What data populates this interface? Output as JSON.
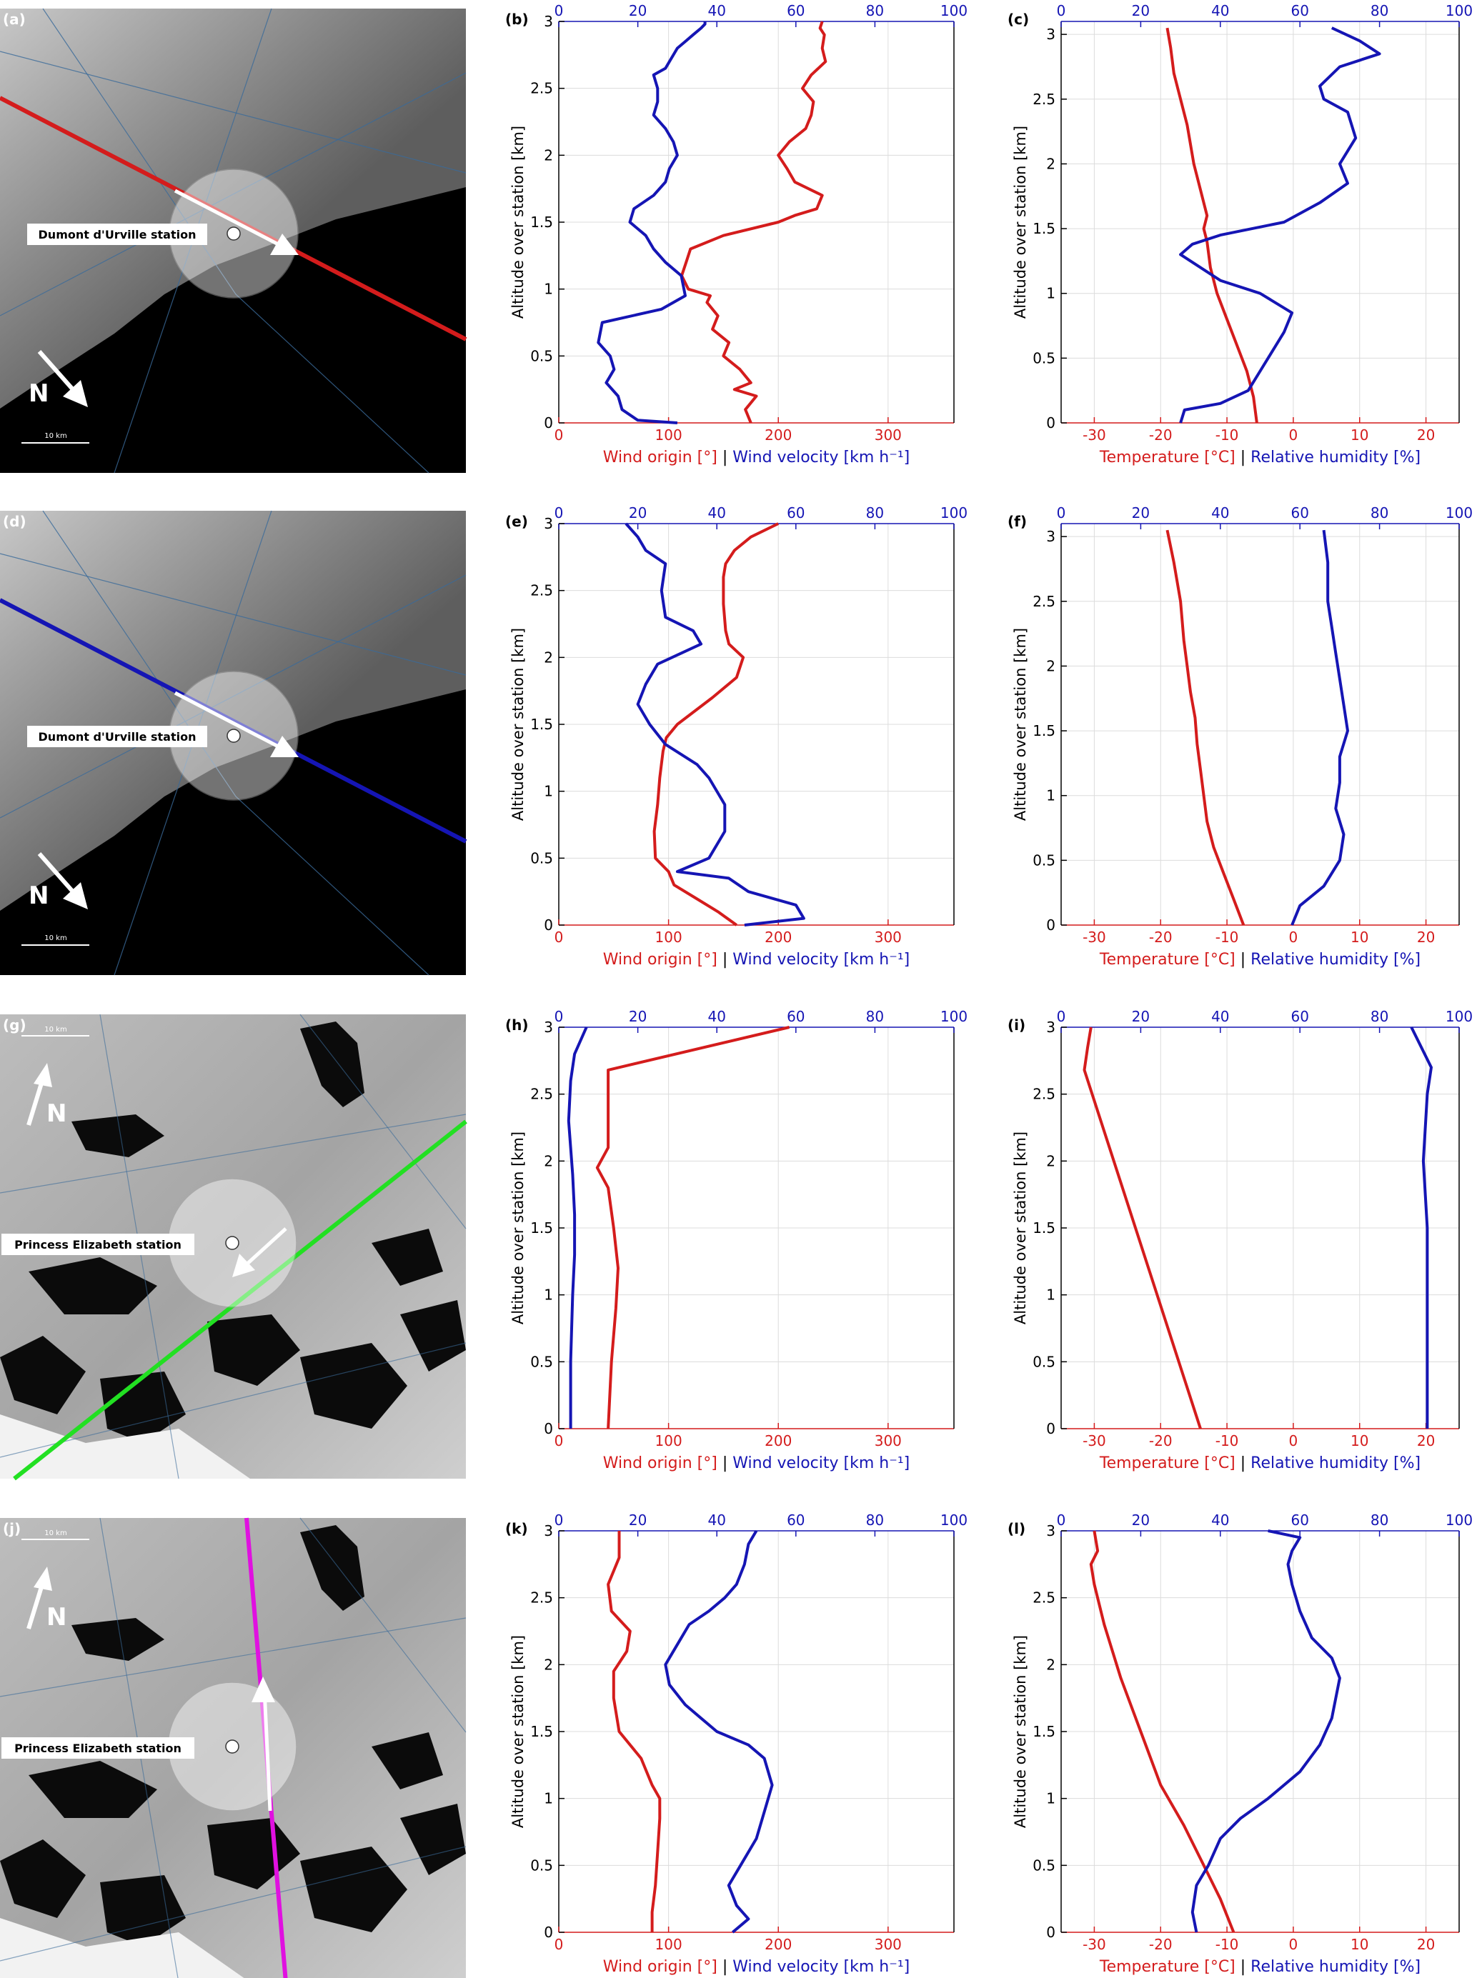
{
  "labels": {
    "wind_origin": "Wind origin [°]",
    "sep1": "|",
    "wind_velocity": "Wind velocity",
    "wind_velocity_unit": "[km h⁻¹]",
    "temperature": "Temperature [°C]",
    "sep2": "|",
    "humidity": "Relative humidity [%]",
    "altitude": "Altitude over station [km]",
    "north": "N",
    "scale": "10 km"
  },
  "colors": {
    "red": "#d41c1c",
    "blue": "#1515b4",
    "green": "#22e022",
    "magenta": "#e010e0",
    "grid": "#dcdcdc"
  },
  "rows": [
    {
      "map_label": "(a)",
      "station": "Dumont d'Urville station",
      "map_type": "dark",
      "line_color": "red",
      "wind_label": "(b)",
      "thermo_label": "(c)"
    },
    {
      "map_label": "(d)",
      "station": "Dumont d'Urville station",
      "map_type": "dark",
      "line_color": "blue",
      "wind_label": "(e)",
      "thermo_label": "(f)"
    },
    {
      "map_label": "(g)",
      "station": "Princess Elizabeth station",
      "map_type": "light",
      "line_color": "green",
      "wind_label": "(h)",
      "thermo_label": "(i)"
    },
    {
      "map_label": "(j)",
      "station": "Princess Elizabeth station",
      "map_type": "light",
      "line_color": "magenta",
      "wind_label": "(k)",
      "thermo_label": "(l)"
    }
  ],
  "chart_data": [
    {
      "id": "b",
      "type": "line",
      "xlabel": "Wind origin [°] | Wind velocity [km h⁻¹]",
      "ylabel": "Altitude over station [km]",
      "xlim_bottom": [
        0,
        360
      ],
      "xticks_bottom": [
        0,
        100,
        200,
        300
      ],
      "xlim_top": [
        0,
        100
      ],
      "xticks_top": [
        0,
        20,
        40,
        60,
        80,
        100
      ],
      "ylim": [
        0,
        3
      ],
      "yticks": [
        0,
        0.5,
        1,
        1.5,
        2,
        2.5,
        3
      ],
      "series": [
        {
          "color": "red",
          "axis": "bottom",
          "x": [
            175,
            170,
            180,
            160,
            175,
            165,
            150,
            155,
            140,
            145,
            135,
            138,
            118,
            112,
            116,
            120,
            150,
            200,
            215,
            235,
            240,
            215,
            208,
            200,
            210,
            225,
            230,
            232,
            222,
            230,
            243,
            240,
            242,
            238,
            240
          ],
          "y": [
            0,
            0.1,
            0.2,
            0.25,
            0.3,
            0.4,
            0.5,
            0.6,
            0.7,
            0.8,
            0.9,
            0.95,
            1.0,
            1.1,
            1.2,
            1.3,
            1.4,
            1.5,
            1.55,
            1.6,
            1.7,
            1.8,
            1.9,
            2.0,
            2.1,
            2.2,
            2.3,
            2.4,
            2.5,
            2.6,
            2.7,
            2.8,
            2.9,
            2.95,
            3.0
          ]
        },
        {
          "color": "blue",
          "axis": "top",
          "x": [
            30,
            20,
            16,
            15,
            12,
            14,
            13,
            10,
            11,
            26,
            32,
            31,
            27,
            24,
            22,
            18,
            19,
            24,
            27,
            28,
            30,
            29,
            27,
            24,
            25,
            25,
            24,
            27,
            28,
            30,
            32,
            34,
            36,
            37,
            37
          ],
          "y": [
            0,
            0.02,
            0.1,
            0.2,
            0.3,
            0.4,
            0.5,
            0.6,
            0.75,
            0.85,
            0.95,
            1.1,
            1.2,
            1.3,
            1.4,
            1.5,
            1.6,
            1.7,
            1.8,
            1.9,
            2.0,
            2.1,
            2.2,
            2.3,
            2.4,
            2.5,
            2.6,
            2.65,
            2.7,
            2.8,
            2.85,
            2.9,
            2.95,
            2.98,
            3.0
          ]
        }
      ]
    },
    {
      "id": "c",
      "type": "line",
      "xlabel": "Temperature [°C] | Relative humidity [%]",
      "ylabel": "Altitude over station [km]",
      "xlim_bottom": [
        -35,
        25
      ],
      "xticks_bottom": [
        -30,
        -20,
        -10,
        0,
        10,
        20
      ],
      "xlim_top": [
        0,
        100
      ],
      "xticks_top": [
        0,
        20,
        40,
        60,
        80,
        100
      ],
      "ylim": [
        0,
        3.1
      ],
      "yticks": [
        0,
        0.5,
        1,
        1.5,
        2,
        2.5,
        3
      ],
      "series": [
        {
          "color": "red",
          "axis": "bottom",
          "x": [
            -5.5,
            -6,
            -7,
            -8.5,
            -10,
            -11.5,
            -12.5,
            -13,
            -13.5,
            -13,
            -14,
            -15,
            -16,
            -17,
            -18,
            -18.5,
            -19
          ],
          "y": [
            0,
            0.2,
            0.4,
            0.6,
            0.8,
            1.0,
            1.2,
            1.4,
            1.5,
            1.6,
            1.8,
            2.0,
            2.3,
            2.5,
            2.7,
            2.9,
            3.05
          ]
        },
        {
          "color": "blue",
          "axis": "top",
          "x": [
            30,
            31,
            40,
            47,
            50,
            53,
            56,
            58,
            50,
            40,
            30,
            33,
            40,
            56,
            65,
            72,
            70,
            74,
            72,
            66,
            65,
            70,
            80,
            75,
            68
          ],
          "y": [
            0,
            0.1,
            0.15,
            0.25,
            0.4,
            0.55,
            0.7,
            0.85,
            1.0,
            1.1,
            1.3,
            1.38,
            1.45,
            1.55,
            1.7,
            1.85,
            2.0,
            2.2,
            2.4,
            2.5,
            2.6,
            2.75,
            2.85,
            2.95,
            3.05
          ]
        }
      ]
    },
    {
      "id": "e",
      "type": "line",
      "xlabel": "Wind origin [°] | Wind velocity [km h⁻¹]",
      "ylabel": "Altitude over station [km]",
      "xlim_bottom": [
        0,
        360
      ],
      "xticks_bottom": [
        0,
        100,
        200,
        300
      ],
      "xlim_top": [
        0,
        100
      ],
      "xticks_top": [
        0,
        20,
        40,
        60,
        80,
        100
      ],
      "ylim": [
        0,
        3
      ],
      "yticks": [
        0,
        0.5,
        1,
        1.5,
        2,
        2.5,
        3
      ],
      "series": [
        {
          "color": "red",
          "axis": "bottom",
          "x": [
            162,
            145,
            125,
            105,
            100,
            88,
            87,
            90,
            92,
            95,
            98,
            108,
            140,
            162,
            168,
            155,
            152,
            150,
            150,
            152,
            160,
            175,
            200
          ],
          "y": [
            0,
            0.1,
            0.2,
            0.3,
            0.4,
            0.5,
            0.7,
            0.9,
            1.1,
            1.3,
            1.4,
            1.5,
            1.7,
            1.85,
            2.0,
            2.1,
            2.2,
            2.4,
            2.6,
            2.7,
            2.8,
            2.9,
            3.0
          ]
        },
        {
          "color": "blue",
          "axis": "top",
          "x": [
            47,
            62,
            60,
            48,
            43,
            30,
            38,
            42,
            42,
            38,
            35,
            27,
            23,
            20,
            22,
            25,
            36,
            34,
            27,
            26,
            27,
            22,
            20,
            17
          ],
          "y": [
            0,
            0.05,
            0.15,
            0.25,
            0.35,
            0.4,
            0.5,
            0.7,
            0.9,
            1.1,
            1.2,
            1.35,
            1.5,
            1.65,
            1.8,
            1.95,
            2.1,
            2.2,
            2.3,
            2.5,
            2.7,
            2.8,
            2.9,
            3.0
          ]
        }
      ]
    },
    {
      "id": "f",
      "type": "line",
      "xlabel": "Temperature [°C] | Relative humidity [%]",
      "ylabel": "Altitude over station [km]",
      "xlim_bottom": [
        -35,
        25
      ],
      "xticks_bottom": [
        -30,
        -20,
        -10,
        0,
        10,
        20
      ],
      "xlim_top": [
        0,
        100
      ],
      "xticks_top": [
        0,
        20,
        40,
        60,
        80,
        100
      ],
      "ylim": [
        0,
        3.1
      ],
      "yticks": [
        0,
        0.5,
        1,
        1.5,
        2,
        2.5,
        3
      ],
      "series": [
        {
          "color": "red",
          "axis": "bottom",
          "x": [
            -7.5,
            -9,
            -10.5,
            -12,
            -13,
            -13.5,
            -14,
            -14.5,
            -14.8,
            -15.5,
            -16,
            -16.5,
            -17,
            -18,
            -19
          ],
          "y": [
            0,
            0.2,
            0.4,
            0.6,
            0.8,
            1.0,
            1.2,
            1.4,
            1.6,
            1.8,
            2.0,
            2.2,
            2.5,
            2.8,
            3.05
          ]
        },
        {
          "color": "blue",
          "axis": "top",
          "x": [
            58,
            60,
            66,
            70,
            71,
            69,
            70,
            70,
            72,
            71,
            70,
            69,
            68,
            67,
            67,
            66
          ],
          "y": [
            0,
            0.15,
            0.3,
            0.5,
            0.7,
            0.9,
            1.1,
            1.3,
            1.5,
            1.7,
            1.9,
            2.1,
            2.3,
            2.5,
            2.8,
            3.05
          ]
        }
      ]
    },
    {
      "id": "h",
      "type": "line",
      "xlabel": "Wind origin [°] | Wind velocity [km h⁻¹]",
      "ylabel": "Altitude over station [km]",
      "xlim_bottom": [
        0,
        360
      ],
      "xticks_bottom": [
        0,
        100,
        200,
        300
      ],
      "xlim_top": [
        0,
        100
      ],
      "xticks_top": [
        0,
        20,
        40,
        60,
        80,
        100
      ],
      "ylim": [
        0,
        3
      ],
      "yticks": [
        0,
        0.5,
        1,
        1.5,
        2,
        2.5,
        3
      ],
      "series": [
        {
          "color": "red",
          "axis": "bottom",
          "x": [
            45,
            48,
            52,
            54,
            50,
            45,
            35,
            45,
            45,
            210
          ],
          "y": [
            0,
            0.5,
            0.9,
            1.2,
            1.5,
            1.8,
            1.95,
            2.1,
            2.68,
            3.0
          ]
        },
        {
          "color": "blue",
          "axis": "top",
          "x": [
            3,
            3,
            3.5,
            4,
            4,
            3.5,
            3,
            2.5,
            3,
            4,
            7
          ],
          "y": [
            0,
            0.5,
            1.0,
            1.3,
            1.6,
            1.9,
            2.1,
            2.3,
            2.6,
            2.8,
            3.0
          ]
        }
      ]
    },
    {
      "id": "i",
      "type": "line",
      "xlabel": "Temperature [°C] | Relative humidity [%]",
      "ylabel": "Altitude over station [km]",
      "xlim_bottom": [
        -35,
        25
      ],
      "xticks_bottom": [
        -30,
        -20,
        -10,
        0,
        10,
        20
      ],
      "xlim_top": [
        0,
        100
      ],
      "xticks_top": [
        0,
        20,
        40,
        60,
        80,
        100
      ],
      "ylim": [
        0,
        3
      ],
      "yticks": [
        0,
        0.5,
        1,
        1.5,
        2,
        2.5,
        3
      ],
      "series": [
        {
          "color": "red",
          "axis": "bottom",
          "x": [
            -14,
            -31.5,
            -31,
            -30.5
          ],
          "y": [
            0,
            2.68,
            2.85,
            3.0
          ]
        },
        {
          "color": "blue",
          "axis": "top",
          "x": [
            92,
            92,
            92,
            92,
            91,
            92,
            93,
            88
          ],
          "y": [
            0,
            0.5,
            1.0,
            1.5,
            2.0,
            2.5,
            2.7,
            3.0
          ]
        }
      ]
    },
    {
      "id": "k",
      "type": "line",
      "xlabel": "Wind origin [°] | Wind velocity [km h⁻¹]",
      "ylabel": "Altitude over station [km]",
      "xlim_bottom": [
        0,
        360
      ],
      "xticks_bottom": [
        0,
        100,
        200,
        300
      ],
      "xlim_top": [
        0,
        100
      ],
      "xticks_top": [
        0,
        20,
        40,
        60,
        80,
        100
      ],
      "ylim": [
        0,
        3
      ],
      "yticks": [
        0,
        0.5,
        1,
        1.5,
        2,
        2.5,
        3
      ],
      "series": [
        {
          "color": "red",
          "axis": "bottom",
          "x": [
            85,
            85,
            88,
            90,
            92,
            92,
            85,
            80,
            75,
            55,
            50,
            50,
            62,
            65,
            48,
            45,
            55,
            55
          ],
          "y": [
            0,
            0.15,
            0.35,
            0.6,
            0.85,
            1.0,
            1.1,
            1.2,
            1.3,
            1.5,
            1.75,
            1.95,
            2.1,
            2.25,
            2.4,
            2.6,
            2.8,
            3.0
          ]
        },
        {
          "color": "blue",
          "axis": "top",
          "x": [
            44,
            48,
            45,
            43,
            46,
            50,
            52,
            54,
            52,
            48,
            40,
            36,
            32,
            28,
            27,
            30,
            33,
            38,
            42,
            45,
            47,
            48,
            50
          ],
          "y": [
            0,
            0.1,
            0.2,
            0.35,
            0.5,
            0.7,
            0.9,
            1.1,
            1.3,
            1.4,
            1.5,
            1.6,
            1.7,
            1.85,
            2.0,
            2.15,
            2.3,
            2.4,
            2.5,
            2.6,
            2.75,
            2.9,
            3.0
          ]
        }
      ]
    },
    {
      "id": "l",
      "type": "line",
      "xlabel": "Temperature [°C] | Relative humidity [%]",
      "ylabel": "Altitude over station [km]",
      "xlim_bottom": [
        -35,
        25
      ],
      "xticks_bottom": [
        -30,
        -20,
        -10,
        0,
        10,
        20
      ],
      "xlim_top": [
        0,
        100
      ],
      "xticks_top": [
        0,
        20,
        40,
        60,
        80,
        100
      ],
      "ylim": [
        0,
        3
      ],
      "yticks": [
        0,
        0.5,
        1,
        1.5,
        2,
        2.5,
        3
      ],
      "series": [
        {
          "color": "red",
          "axis": "bottom",
          "x": [
            -9,
            -11,
            -13.5,
            -16.5,
            -20,
            -23,
            -26,
            -28.5,
            -30,
            -30.5,
            -29.5,
            -30
          ],
          "y": [
            0,
            0.25,
            0.5,
            0.8,
            1.1,
            1.5,
            1.9,
            2.3,
            2.6,
            2.75,
            2.85,
            3.0
          ]
        },
        {
          "color": "blue",
          "axis": "top",
          "x": [
            34,
            33,
            34,
            37,
            40,
            45,
            52,
            60,
            65,
            68,
            70,
            68,
            63,
            60,
            58,
            57,
            58,
            60,
            52
          ],
          "y": [
            0,
            0.15,
            0.35,
            0.5,
            0.7,
            0.85,
            1.0,
            1.2,
            1.4,
            1.6,
            1.9,
            2.05,
            2.2,
            2.4,
            2.6,
            2.75,
            2.85,
            2.95,
            3.0
          ]
        }
      ]
    }
  ]
}
